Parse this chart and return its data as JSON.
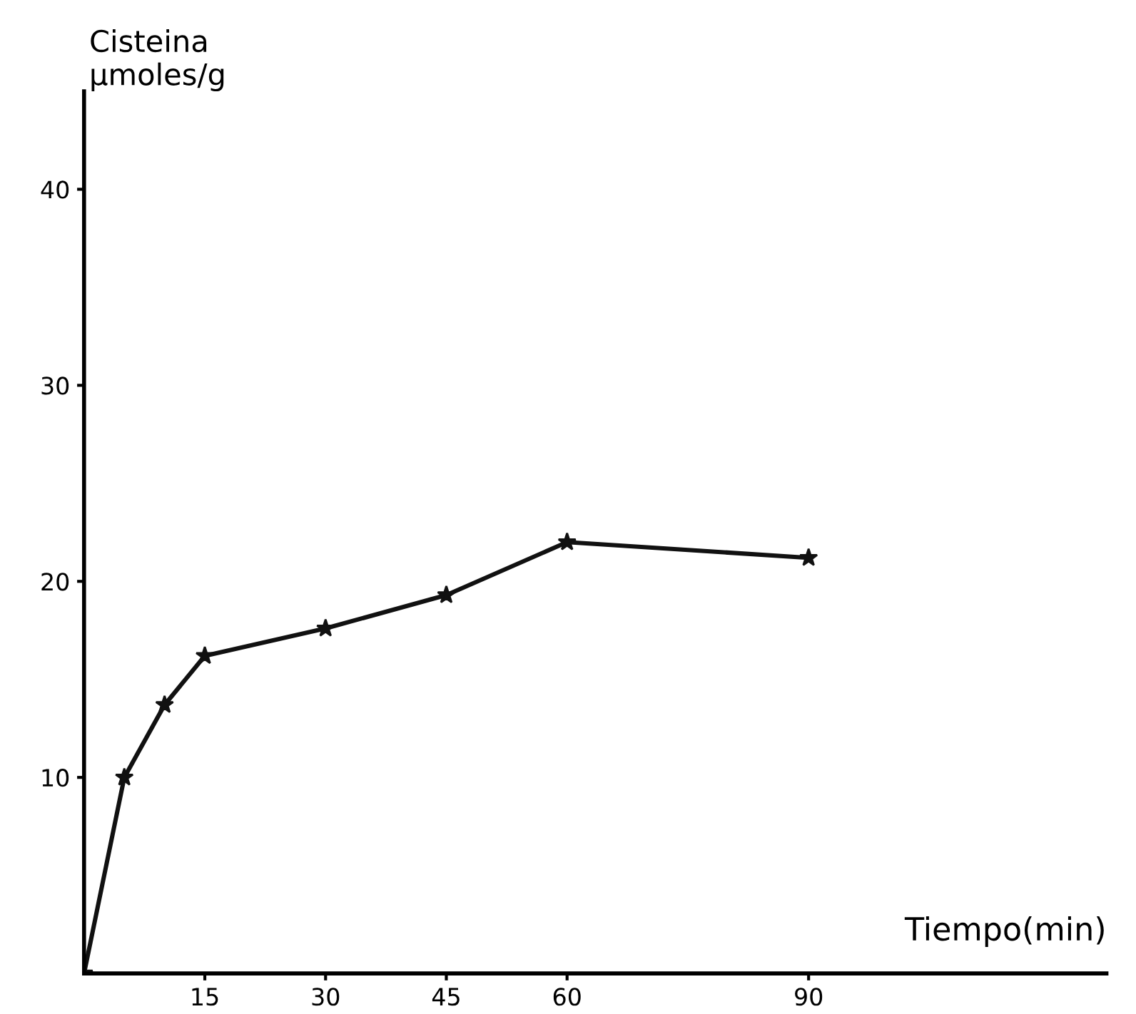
{
  "chart_data": {
    "type": "line",
    "xlabel": "Tiempo(min)",
    "ylabel": "Cisteina\nµmoles/g",
    "x": [
      0,
      5,
      10,
      15,
      30,
      45,
      60,
      90
    ],
    "series": [
      {
        "color": "#111111",
        "values": [
          0,
          10,
          13.7,
          16.2,
          17.6,
          19.3,
          22.0,
          21.2
        ]
      }
    ],
    "xlim": [
      0,
      127
    ],
    "ylim": [
      0,
      45
    ],
    "xticks": [
      15,
      30,
      45,
      60,
      90
    ],
    "yticks": [
      10,
      20,
      30,
      40
    ],
    "marker": "star",
    "line_style": "solid",
    "grid": false,
    "legend": false
  }
}
